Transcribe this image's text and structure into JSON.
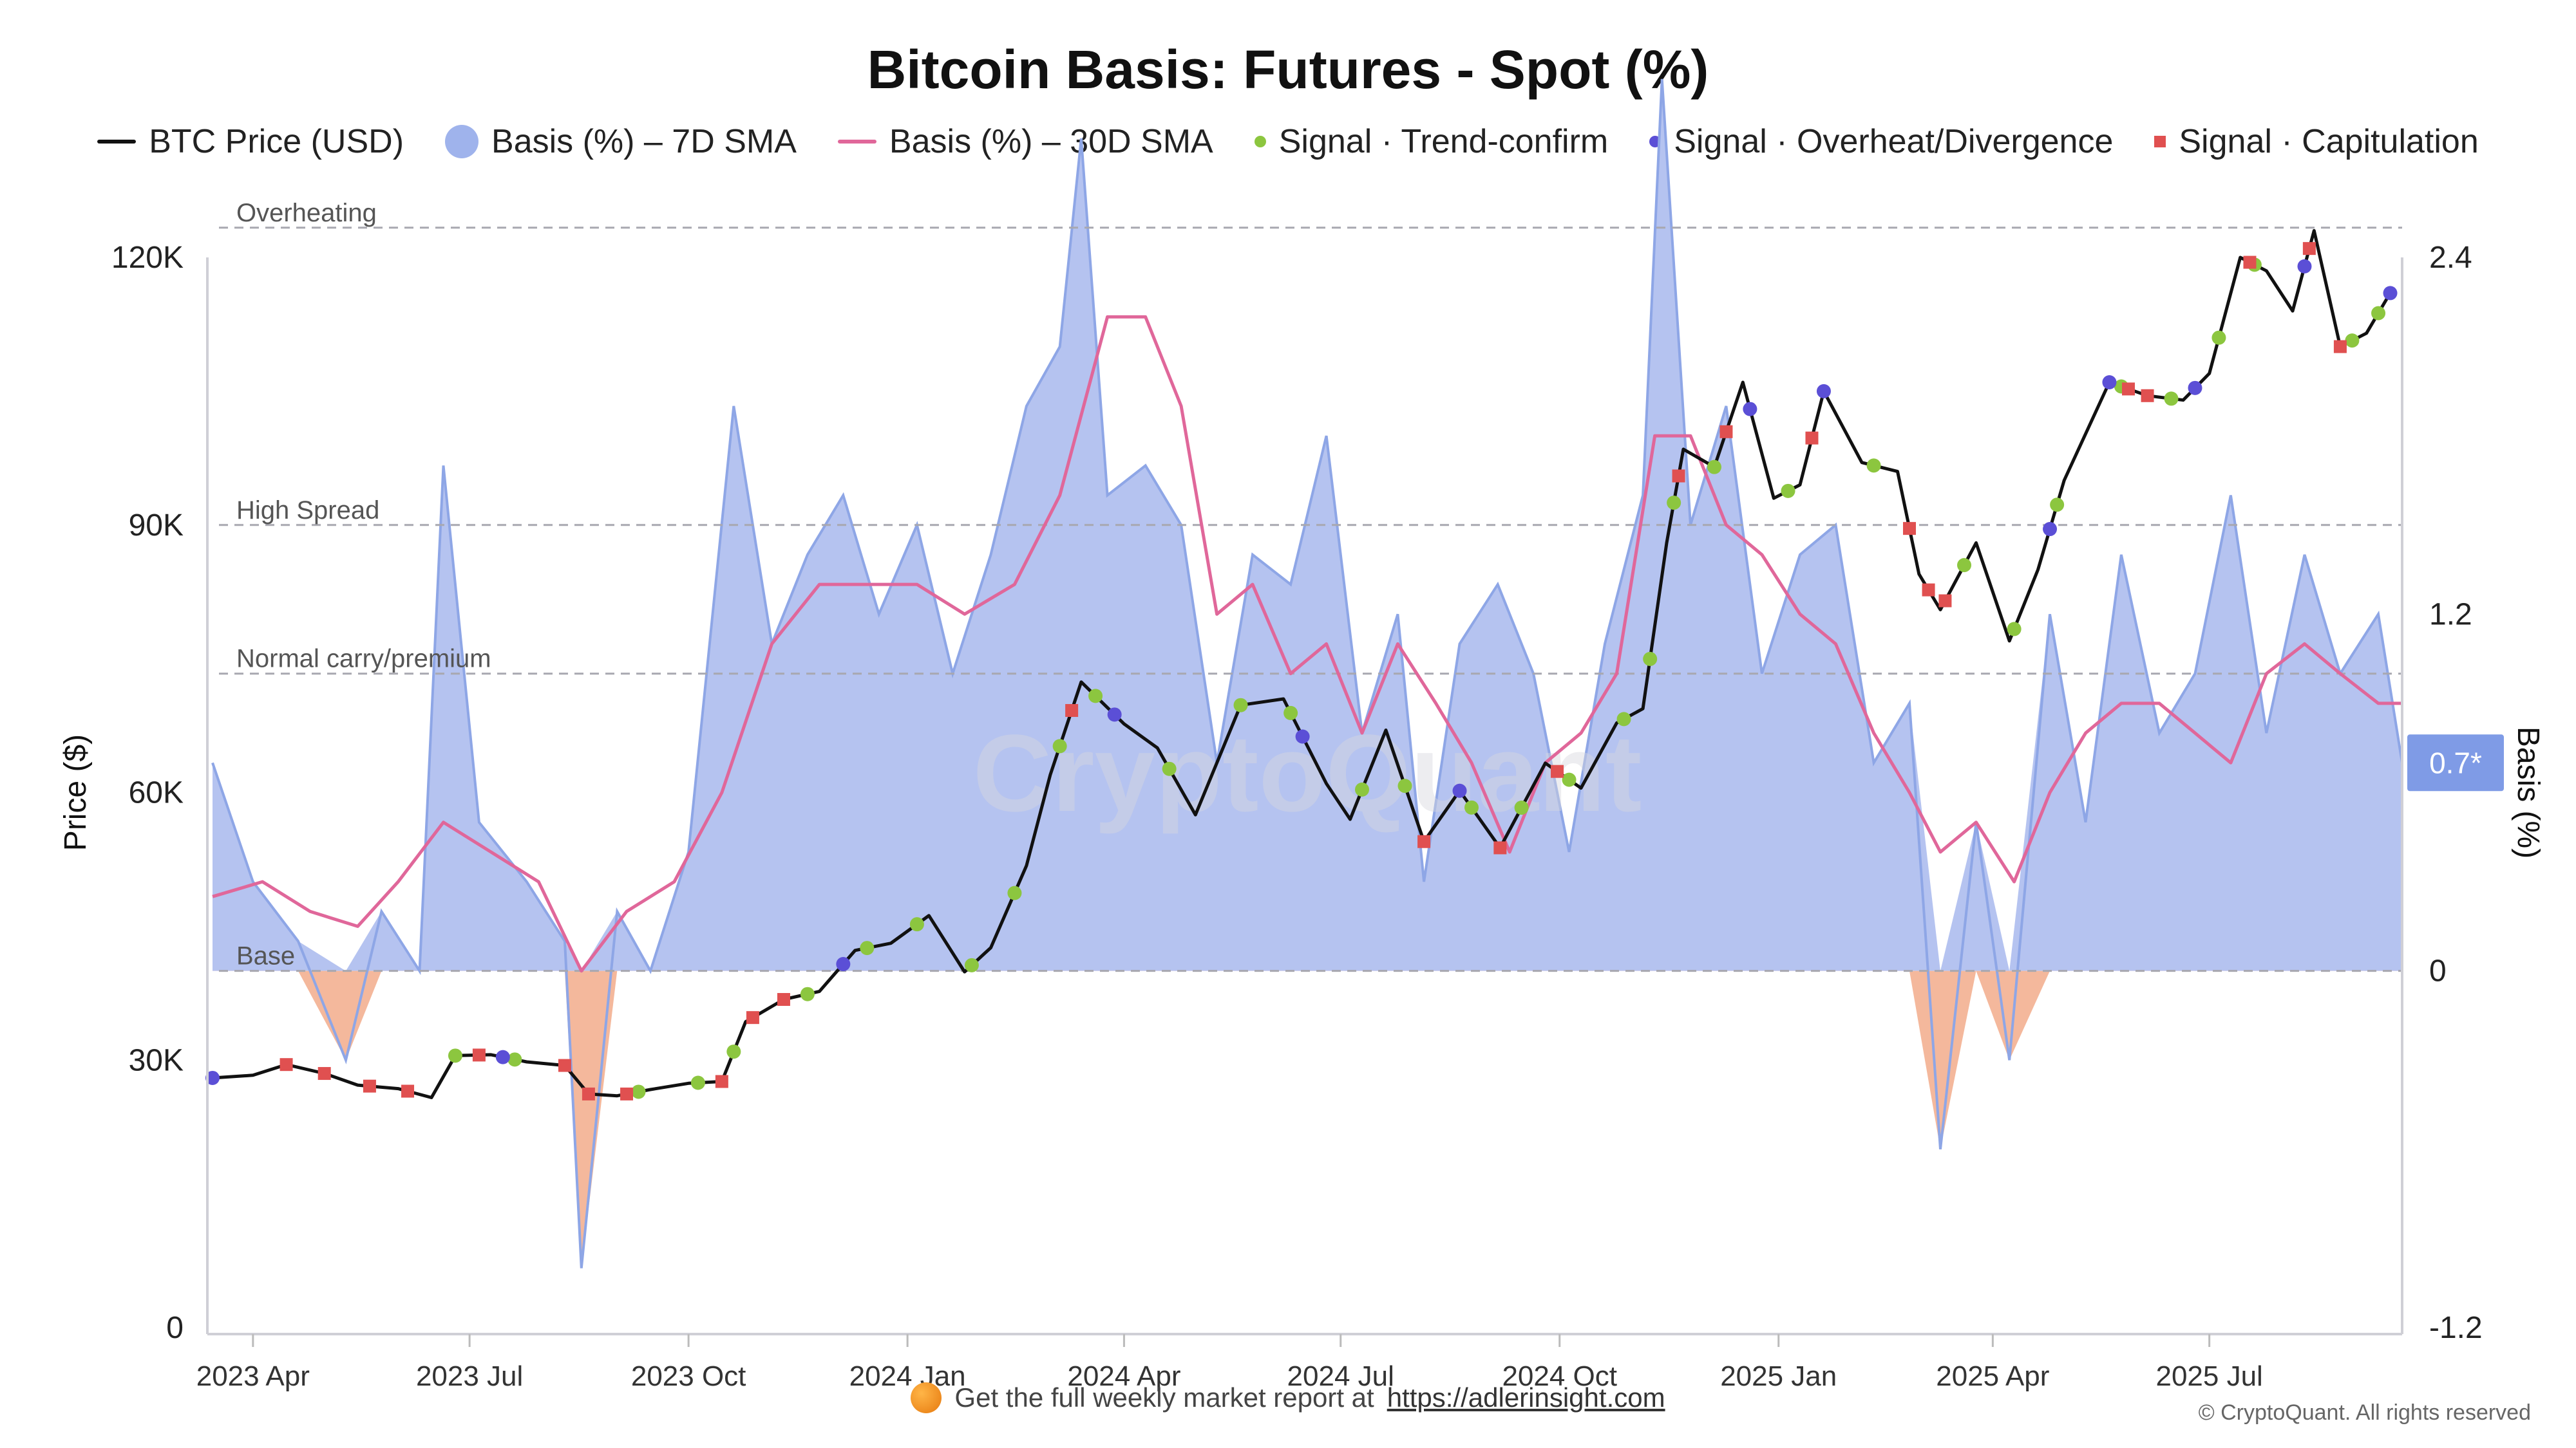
{
  "title": "Bitcoin Basis: Futures - Spot (%)",
  "legend": [
    {
      "key": "btc",
      "label": "BTC Price (USD)",
      "color": "#111111",
      "shape": "line"
    },
    {
      "key": "sma7",
      "label": "Basis (%) – 7D SMA",
      "color": "#9fb3ec",
      "shape": "circle"
    },
    {
      "key": "sma30",
      "label": "Basis (%) – 30D SMA",
      "color": "#e0679a",
      "shape": "line"
    },
    {
      "key": "trend",
      "label": "Signal · Trend-confirm",
      "color": "#8cc63f",
      "shape": "dot"
    },
    {
      "key": "overheat",
      "label": "Signal · Overheat/Divergence",
      "color": "#5b4fd6",
      "shape": "dot"
    },
    {
      "key": "capit",
      "label": "Signal · Capitulation",
      "color": "#e05050",
      "shape": "square"
    }
  ],
  "footer": {
    "text": "Get the full weekly market report at",
    "link": "https://adlerinsight.com",
    "copyright": "© CryptoQuant. All rights reserved",
    "coin_icon": "coin-icon"
  },
  "watermark": "CryptoQuant",
  "chart_data": {
    "type": "line",
    "title": "Bitcoin Basis: Futures - Spot (%)",
    "x_ticks": [
      "2023 Apr",
      "2023 Jul",
      "2023 Oct",
      "2024 Jan",
      "2024 Apr",
      "2024 Jul",
      "2024 Oct",
      "2025 Jan",
      "2025 Apr",
      "2025 Jul"
    ],
    "x_range": [
      "2023-03-15",
      "2025-09-20"
    ],
    "y_left": {
      "label": "Price ($)",
      "min": 0,
      "max": 120000,
      "ticks": [
        0,
        30000,
        60000,
        90000,
        120000
      ],
      "tick_labels": [
        "0",
        "30K",
        "60K",
        "90K",
        "120K"
      ]
    },
    "y_right": {
      "label": "Basis (%)",
      "min": -1.2,
      "max": 2.4,
      "ticks": [
        -1.2,
        0,
        1.2,
        2.4
      ],
      "tick_labels": [
        "-1.2",
        "0",
        "1.2",
        "2.4"
      ]
    },
    "thresholds": [
      {
        "label": "Overheating",
        "value": 2.5
      },
      {
        "label": "High Spread",
        "value": 1.5
      },
      {
        "label": "Normal carry/premium",
        "value": 1.0
      },
      {
        "label": "Base",
        "value": 0
      }
    ],
    "current_badge": {
      "label": "0.7*",
      "value": 0.7
    },
    "colors": {
      "positive_fill": "#b5c3f0",
      "positive_line": "#8ea6e6",
      "negative_fill": "#f4b89c",
      "negative_line": "#eea283",
      "sma30": "#e0679a",
      "price": "#111111"
    },
    "series": [
      {
        "name": "BTC Price (USD)",
        "axis": "left",
        "x": [
          "2023-03-15",
          "2023-04-01",
          "2023-04-15",
          "2023-05-01",
          "2023-05-15",
          "2023-06-01",
          "2023-06-15",
          "2023-06-25",
          "2023-07-10",
          "2023-07-25",
          "2023-08-10",
          "2023-08-20",
          "2023-09-01",
          "2023-09-15",
          "2023-10-01",
          "2023-10-15",
          "2023-10-25",
          "2023-11-10",
          "2023-11-25",
          "2023-12-10",
          "2023-12-25",
          "2024-01-10",
          "2024-01-25",
          "2024-02-05",
          "2024-02-20",
          "2024-03-01",
          "2024-03-14",
          "2024-04-01",
          "2024-04-15",
          "2024-05-01",
          "2024-05-20",
          "2024-06-07",
          "2024-06-25",
          "2024-07-05",
          "2024-07-20",
          "2024-08-05",
          "2024-08-20",
          "2024-09-06",
          "2024-09-25",
          "2024-10-10",
          "2024-10-25",
          "2024-11-05",
          "2024-11-15",
          "2024-11-22",
          "2024-12-05",
          "2024-12-17",
          "2024-12-30",
          "2025-01-10",
          "2025-01-20",
          "2025-02-05",
          "2025-02-20",
          "2025-03-01",
          "2025-03-10",
          "2025-03-25",
          "2025-04-08",
          "2025-04-20",
          "2025-05-01",
          "2025-05-20",
          "2025-06-05",
          "2025-06-20",
          "2025-07-01",
          "2025-07-14",
          "2025-07-25",
          "2025-08-05",
          "2025-08-14",
          "2025-08-25",
          "2025-09-05",
          "2025-09-15"
        ],
        "values": [
          28000,
          28300,
          29500,
          28500,
          27200,
          26800,
          25800,
          30500,
          30600,
          29800,
          29400,
          26200,
          26000,
          26700,
          27400,
          27600,
          34300,
          36800,
          37700,
          42300,
          43100,
          46200,
          39900,
          42600,
          51800,
          62000,
          72400,
          67700,
          65000,
          57500,
          69800,
          70500,
          61000,
          57000,
          67000,
          54500,
          60200,
          53800,
          63300,
          60500,
          67800,
          69400,
          88000,
          98500,
          96500,
          106000,
          93000,
          94500,
          105000,
          97000,
          96000,
          84500,
          80500,
          88000,
          77000,
          85000,
          95000,
          106000,
          104500,
          104000,
          107000,
          120000,
          118500,
          114000,
          123000,
          110000,
          111500,
          116000
        ]
      },
      {
        "name": "Basis (%) – 7D SMA",
        "axis": "right",
        "x": [
          "2023-03-15",
          "2023-04-01",
          "2023-04-20",
          "2023-05-10",
          "2023-05-25",
          "2023-06-10",
          "2023-06-20",
          "2023-07-05",
          "2023-07-25",
          "2023-08-10",
          "2023-08-17",
          "2023-09-01",
          "2023-09-15",
          "2023-10-01",
          "2023-10-20",
          "2023-11-05",
          "2023-11-20",
          "2023-12-05",
          "2023-12-20",
          "2024-01-05",
          "2024-01-20",
          "2024-02-05",
          "2024-02-20",
          "2024-03-05",
          "2024-03-14",
          "2024-03-25",
          "2024-04-10",
          "2024-04-25",
          "2024-05-10",
          "2024-05-25",
          "2024-06-10",
          "2024-06-25",
          "2024-07-10",
          "2024-07-25",
          "2024-08-05",
          "2024-08-20",
          "2024-09-05",
          "2024-09-20",
          "2024-10-05",
          "2024-10-20",
          "2024-11-05",
          "2024-11-13",
          "2024-11-25",
          "2024-12-10",
          "2024-12-25",
          "2025-01-10",
          "2025-01-25",
          "2025-02-10",
          "2025-02-25",
          "2025-03-10",
          "2025-03-25",
          "2025-04-08",
          "2025-04-25",
          "2025-05-10",
          "2025-05-25",
          "2025-06-10",
          "2025-06-25",
          "2025-07-10",
          "2025-07-25",
          "2025-08-10",
          "2025-08-25",
          "2025-09-10",
          "2025-09-20"
        ],
        "values": [
          0.7,
          0.3,
          0.1,
          -0.3,
          0.2,
          0.0,
          1.7,
          0.5,
          0.3,
          0.1,
          -1.0,
          0.2,
          0.0,
          0.4,
          1.9,
          1.1,
          1.4,
          1.6,
          1.2,
          1.5,
          1.0,
          1.4,
          1.9,
          2.1,
          2.8,
          1.6,
          1.7,
          1.5,
          0.7,
          1.4,
          1.3,
          1.8,
          0.8,
          1.2,
          0.3,
          1.1,
          1.3,
          1.0,
          0.4,
          1.1,
          1.6,
          3.0,
          1.5,
          1.9,
          1.0,
          1.4,
          1.5,
          0.7,
          0.9,
          -0.6,
          0.5,
          -0.3,
          1.2,
          0.5,
          1.4,
          0.8,
          1.0,
          1.6,
          0.8,
          1.4,
          1.0,
          1.2,
          0.7
        ]
      },
      {
        "name": "Basis (%) – 30D SMA",
        "axis": "right",
        "x": [
          "2023-03-15",
          "2023-04-05",
          "2023-04-25",
          "2023-05-15",
          "2023-06-01",
          "2023-06-20",
          "2023-07-10",
          "2023-07-30",
          "2023-08-17",
          "2023-09-05",
          "2023-09-25",
          "2023-10-15",
          "2023-11-05",
          "2023-11-25",
          "2023-12-15",
          "2024-01-05",
          "2024-01-25",
          "2024-02-15",
          "2024-03-05",
          "2024-03-25",
          "2024-04-10",
          "2024-04-25",
          "2024-05-10",
          "2024-05-25",
          "2024-06-10",
          "2024-06-25",
          "2024-07-10",
          "2024-07-25",
          "2024-08-10",
          "2024-08-25",
          "2024-09-10",
          "2024-09-25",
          "2024-10-10",
          "2024-10-25",
          "2024-11-10",
          "2024-11-25",
          "2024-12-10",
          "2024-12-25",
          "2025-01-10",
          "2025-01-25",
          "2025-02-10",
          "2025-02-25",
          "2025-03-10",
          "2025-03-25",
          "2025-04-10",
          "2025-04-25",
          "2025-05-10",
          "2025-05-25",
          "2025-06-10",
          "2025-06-25",
          "2025-07-10",
          "2025-07-25",
          "2025-08-10",
          "2025-08-25",
          "2025-09-10",
          "2025-09-20"
        ],
        "values": [
          0.25,
          0.3,
          0.2,
          0.15,
          0.3,
          0.5,
          0.4,
          0.3,
          0.0,
          0.2,
          0.3,
          0.6,
          1.1,
          1.3,
          1.3,
          1.3,
          1.2,
          1.3,
          1.6,
          2.2,
          2.2,
          1.9,
          1.2,
          1.3,
          1.0,
          1.1,
          0.8,
          1.1,
          0.9,
          0.7,
          0.4,
          0.7,
          0.8,
          1.0,
          1.8,
          1.8,
          1.5,
          1.4,
          1.2,
          1.1,
          0.8,
          0.6,
          0.4,
          0.5,
          0.3,
          0.6,
          0.8,
          0.9,
          0.9,
          0.8,
          0.7,
          1.0,
          1.1,
          1.0,
          0.9,
          0.9
        ]
      }
    ],
    "signals": [
      {
        "type": "Signal · Trend-confirm",
        "dates": [
          "2023-06-25",
          "2023-07-20",
          "2023-09-10",
          "2023-10-05",
          "2023-10-20",
          "2023-11-20",
          "2023-12-15",
          "2024-01-05",
          "2024-01-28",
          "2024-02-15",
          "2024-03-05",
          "2024-03-20",
          "2024-04-20",
          "2024-05-20",
          "2024-06-10",
          "2024-07-10",
          "2024-07-28",
          "2024-08-25",
          "2024-09-15",
          "2024-10-05",
          "2024-10-28",
          "2024-11-08",
          "2024-11-18",
          "2024-12-05",
          "2025-01-05",
          "2025-02-10",
          "2025-03-20",
          "2025-04-10",
          "2025-04-28",
          "2025-05-25",
          "2025-06-15",
          "2025-07-05",
          "2025-07-20",
          "2025-08-30",
          "2025-09-10"
        ]
      },
      {
        "type": "Signal · Overheat/Divergence",
        "dates": [
          "2023-03-15",
          "2023-07-15",
          "2023-12-05",
          "2024-03-28",
          "2024-06-15",
          "2024-08-20",
          "2024-12-20",
          "2025-01-20",
          "2025-04-25",
          "2025-05-20",
          "2025-06-25",
          "2025-08-10",
          "2025-09-15"
        ]
      },
      {
        "type": "Signal · Capitulation",
        "dates": [
          "2023-04-15",
          "2023-05-01",
          "2023-05-20",
          "2023-06-05",
          "2023-07-05",
          "2023-08-10",
          "2023-08-20",
          "2023-09-05",
          "2023-10-15",
          "2023-10-28",
          "2023-11-10",
          "2024-03-10",
          "2024-08-05",
          "2024-09-06",
          "2024-09-30",
          "2024-11-20",
          "2024-12-10",
          "2025-01-15",
          "2025-02-25",
          "2025-03-05",
          "2025-03-12",
          "2025-05-28",
          "2025-06-05",
          "2025-07-18",
          "2025-08-12",
          "2025-08-25"
        ]
      }
    ]
  }
}
